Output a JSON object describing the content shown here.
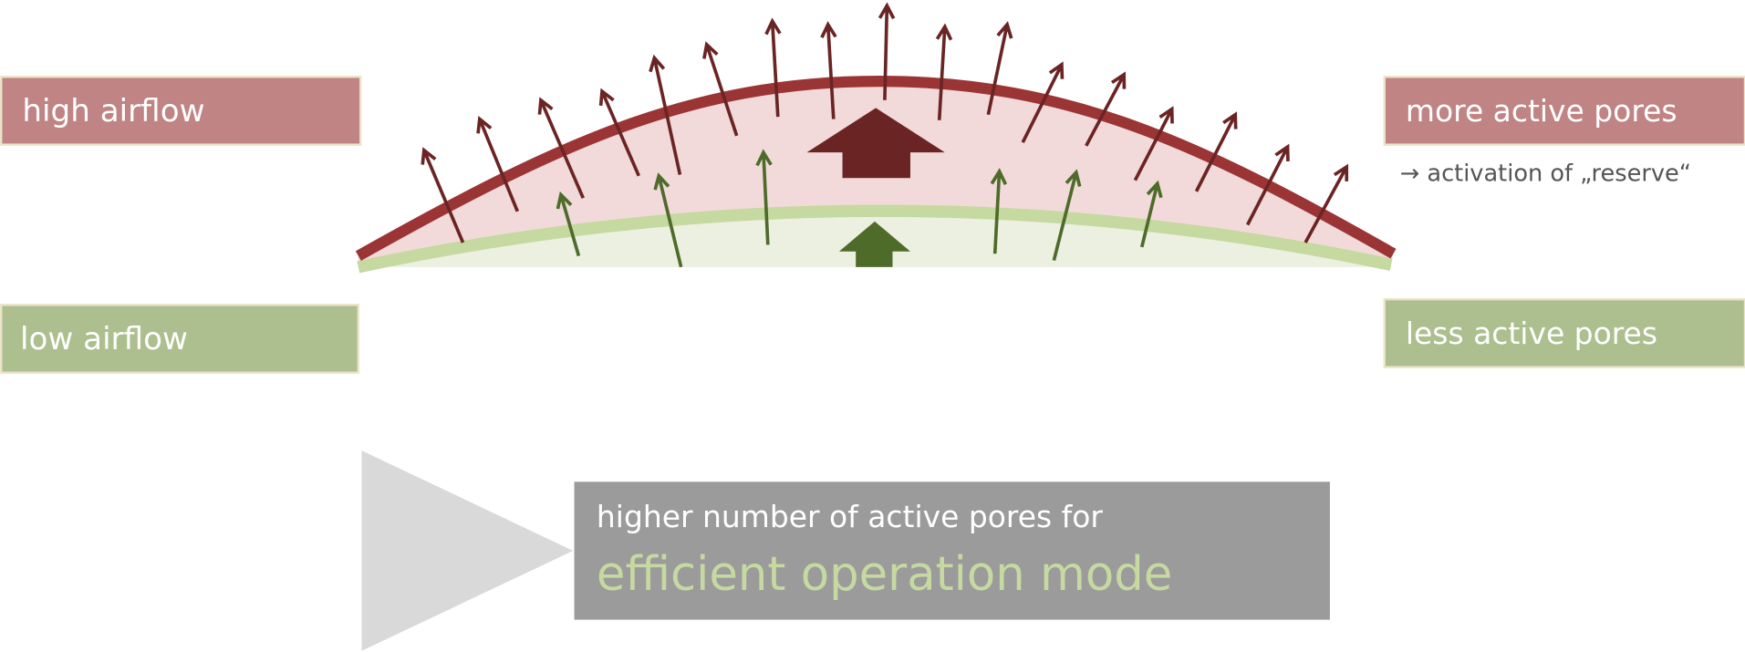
{
  "left_labels": {
    "high": "high airflow",
    "low": "low airflow"
  },
  "right_labels": {
    "high": "more active pores",
    "high_note": "→ activation of „reserve“",
    "low": "less active pores"
  },
  "result": {
    "line1": "higher number of active pores for",
    "line2": "efficient operation mode"
  }
}
